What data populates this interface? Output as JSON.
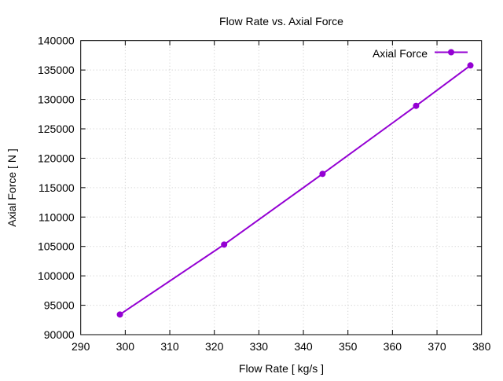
{
  "chart_data": {
    "type": "line",
    "title": "Flow Rate vs. Axial Force",
    "xlabel": "Flow Rate [ kg/s ]",
    "ylabel": "Axial Force [ N ]",
    "xlim": [
      290,
      380
    ],
    "ylim": [
      90000,
      140000
    ],
    "xticks": [
      290,
      300,
      310,
      320,
      330,
      340,
      350,
      360,
      370,
      380
    ],
    "yticks": [
      90000,
      95000,
      100000,
      105000,
      110000,
      115000,
      120000,
      125000,
      130000,
      135000,
      140000
    ],
    "grid": true,
    "legend_position": "top-right",
    "series": [
      {
        "name": "Axial Force",
        "color": "#9400d3",
        "x": [
          298.8,
          322.2,
          344.3,
          365.3,
          377.5
        ],
        "y": [
          93430,
          105320,
          117340,
          128910,
          135780
        ]
      }
    ]
  }
}
